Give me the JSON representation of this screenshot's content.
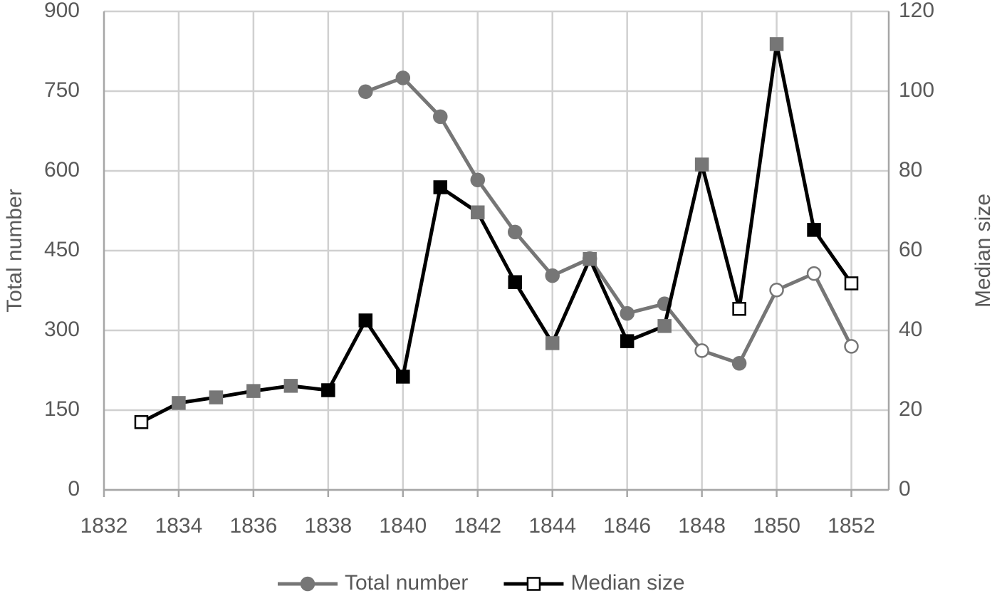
{
  "chart_data": {
    "type": "line",
    "y_label": "Total number",
    "y2_label": "Median size",
    "xlim": [
      1832,
      1853
    ],
    "xticks": [
      1832,
      1834,
      1836,
      1838,
      1840,
      1842,
      1844,
      1846,
      1848,
      1850,
      1852
    ],
    "ylim": [
      0,
      900
    ],
    "yticks": [
      0,
      150,
      300,
      450,
      600,
      750,
      900
    ],
    "y2lim": [
      0,
      120
    ],
    "y2ticks": [
      0,
      20,
      40,
      60,
      80,
      100,
      120
    ],
    "grid": true,
    "legend": "bottom",
    "series": [
      {
        "name": "Total number",
        "color": "#767676",
        "marker": "circle",
        "x": [
          1839,
          1840,
          1841,
          1842,
          1843,
          1844,
          1845,
          1846,
          1847,
          1848,
          1849,
          1850,
          1851,
          1852
        ],
        "values": [
          749,
          775,
          702,
          583,
          485,
          403,
          435,
          332,
          350,
          262,
          238,
          376,
          407,
          270
        ],
        "marker_fills": [
          "#767676",
          "#767676",
          "#767676",
          "#767676",
          "#767676",
          "#767676",
          "#767676",
          "#767676",
          "#767676",
          "#ffffff",
          "#767676",
          "#ffffff",
          "#ffffff",
          "#ffffff"
        ]
      },
      {
        "name": "Median size",
        "color": "#000000",
        "marker": "square",
        "axis": "y2",
        "x": [
          1833,
          1834,
          1835,
          1836,
          1837,
          1838,
          1839,
          1840,
          1841,
          1842,
          1843,
          1844,
          1845,
          1846,
          1847,
          1848,
          1849,
          1850,
          1851,
          1852
        ],
        "values": [
          17.0,
          21.8,
          23.2,
          24.8,
          26.1,
          25.0,
          42.5,
          28.4,
          75.9,
          69.6,
          52.1,
          36.8,
          57.9,
          37.3,
          41.1,
          81.6,
          45.4,
          111.8,
          65.2,
          51.8
        ],
        "marker_fills": [
          "#ffffff",
          "#767676",
          "#767676",
          "#767676",
          "#767676",
          "#000000",
          "#000000",
          "#000000",
          "#000000",
          "#767676",
          "#000000",
          "#767676",
          "#767676",
          "#000000",
          "#767676",
          "#767676",
          "#ffffff",
          "#767676",
          "#000000",
          "#ffffff"
        ]
      }
    ]
  }
}
